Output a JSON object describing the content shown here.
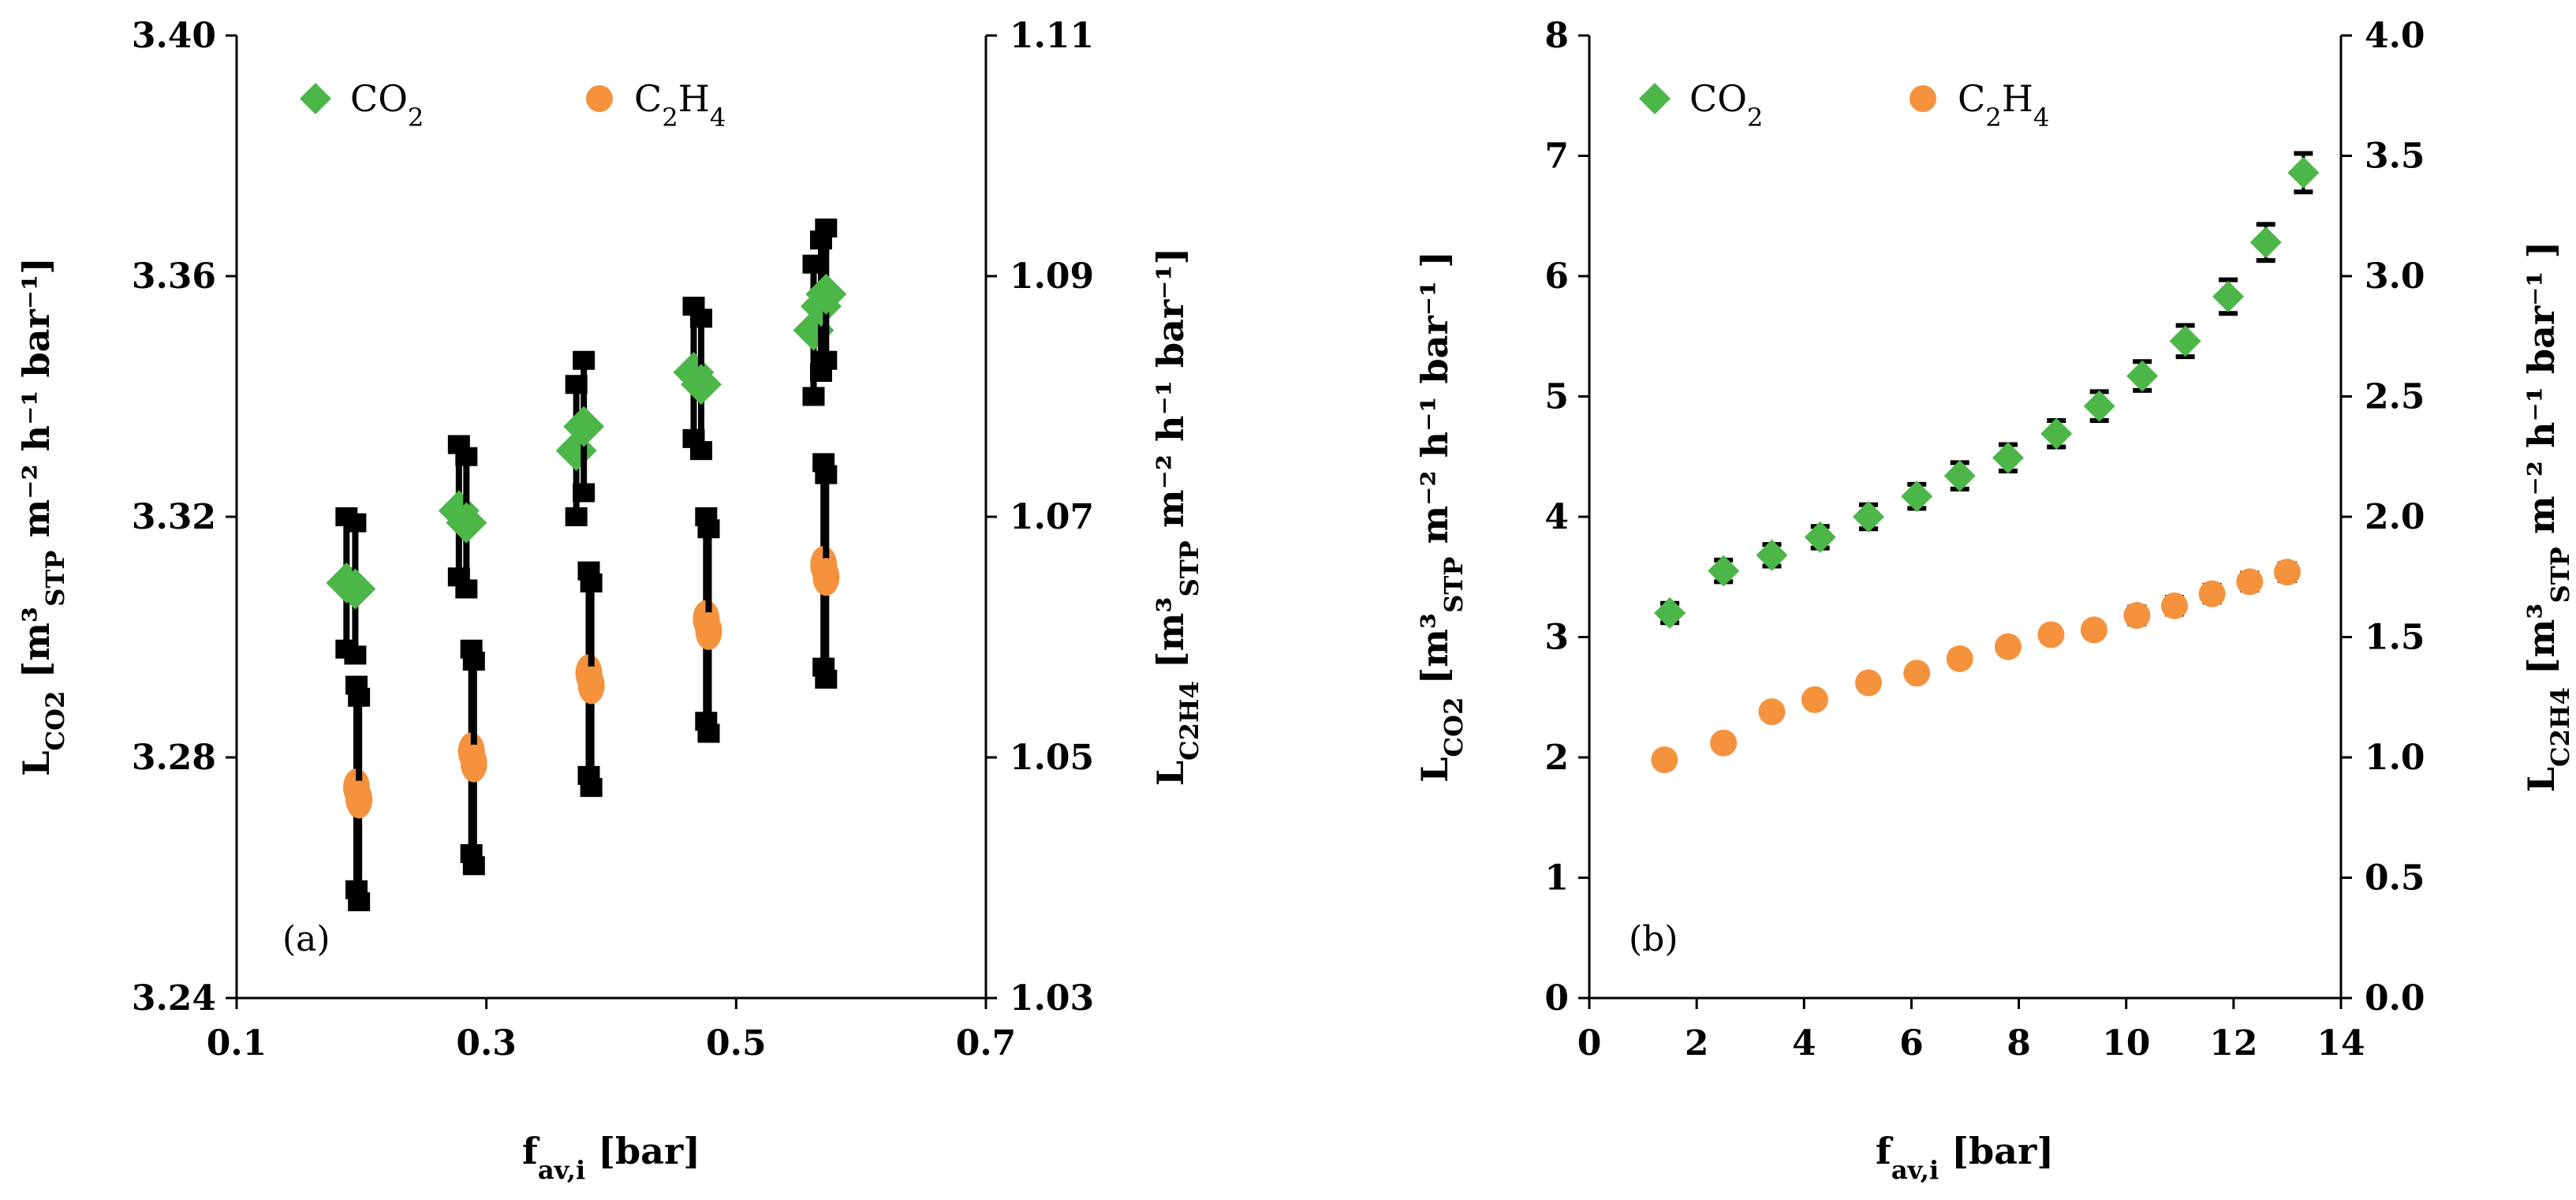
{
  "chart_data": [
    {
      "type": "scatter",
      "panel_label": "(a)",
      "xlabel": {
        "main": "f",
        "sub": "av,i",
        "unit": " [bar]"
      },
      "ylabel_left": {
        "main": "L",
        "sub": "CO2",
        "unit": " [m³",
        "sub2": "STP",
        "rest": " m⁻² h⁻¹ bar⁻¹]"
      },
      "ylabel_right": {
        "main": "L",
        "sub": "C2H4",
        "unit": " [m³",
        "sub2": "STP",
        "rest": " m⁻² h⁻¹ bar⁻¹]"
      },
      "xlim": [
        0.1,
        0.7
      ],
      "xticks": [
        "0.1",
        "0.3",
        "0.5",
        "0.7"
      ],
      "ylim_left": [
        3.24,
        3.4
      ],
      "yticks_left": [
        "3.24",
        "3.28",
        "3.32",
        "3.36",
        "3.40"
      ],
      "ylim_right": [
        1.03,
        1.11
      ],
      "yticks_right": [
        "1.03",
        "1.05",
        "1.07",
        "1.09",
        "1.11"
      ],
      "legend": [
        {
          "label": "CO",
          "sub": "2",
          "marker": "diamond",
          "color": "#4cb648"
        },
        {
          "label": "C",
          "sub": "2",
          "label2": "H",
          "sub2": "4",
          "marker": "circle",
          "color": "#f5923e"
        }
      ],
      "series": [
        {
          "name": "CO2",
          "axis": "left",
          "marker": "diamond",
          "color": "#4cb648",
          "points": [
            {
              "x": 0.188,
              "y": 3.309,
              "err": 0.011
            },
            {
              "x": 0.195,
              "y": 3.308,
              "err": 0.011
            },
            {
              "x": 0.278,
              "y": 3.321,
              "err": 0.011
            },
            {
              "x": 0.284,
              "y": 3.319,
              "err": 0.011
            },
            {
              "x": 0.372,
              "y": 3.331,
              "err": 0.011
            },
            {
              "x": 0.378,
              "y": 3.335,
              "err": 0.011
            },
            {
              "x": 0.466,
              "y": 3.344,
              "err": 0.011
            },
            {
              "x": 0.472,
              "y": 3.342,
              "err": 0.011
            },
            {
              "x": 0.562,
              "y": 3.351,
              "err": 0.011
            },
            {
              "x": 0.568,
              "y": 3.355,
              "err": 0.011
            },
            {
              "x": 0.572,
              "y": 3.357,
              "err": 0.011
            }
          ]
        },
        {
          "name": "C2H4",
          "axis": "right",
          "marker": "circle",
          "color": "#f5923e",
          "points": [
            {
              "x": 0.196,
              "y": 1.0475,
              "err": 0.0085
            },
            {
              "x": 0.198,
              "y": 1.0465,
              "err": 0.0085
            },
            {
              "x": 0.288,
              "y": 1.0505,
              "err": 0.0085
            },
            {
              "x": 0.29,
              "y": 1.0495,
              "err": 0.0085
            },
            {
              "x": 0.382,
              "y": 1.057,
              "err": 0.0085
            },
            {
              "x": 0.384,
              "y": 1.056,
              "err": 0.0085
            },
            {
              "x": 0.476,
              "y": 1.0615,
              "err": 0.0085
            },
            {
              "x": 0.478,
              "y": 1.0605,
              "err": 0.0085
            },
            {
              "x": 0.57,
              "y": 1.066,
              "err": 0.0085
            },
            {
              "x": 0.572,
              "y": 1.065,
              "err": 0.0085
            }
          ]
        }
      ]
    },
    {
      "type": "scatter",
      "panel_label": "(b)",
      "xlabel": {
        "main": "f",
        "sub": "av,i",
        "unit": " [bar]"
      },
      "ylabel_left": {
        "main": "L",
        "sub": "CO2",
        "unit": " [m³",
        "sub2": "STP",
        "rest": " m⁻² h⁻¹ bar⁻¹ ]"
      },
      "ylabel_right": {
        "main": "L",
        "sub": "C2H4",
        "unit": " [m³",
        "sub2": "STP",
        "rest": " m⁻² h⁻¹ bar⁻¹ ]"
      },
      "xlim": [
        0,
        14
      ],
      "xticks": [
        "0",
        "2",
        "4",
        "6",
        "8",
        "10",
        "12",
        "14"
      ],
      "ylim_left": [
        0,
        8
      ],
      "yticks_left": [
        "0",
        "1",
        "2",
        "3",
        "4",
        "5",
        "6",
        "7",
        "8"
      ],
      "ylim_right": [
        0,
        4
      ],
      "yticks_right": [
        "0.0",
        "0.5",
        "1.0",
        "1.5",
        "2.0",
        "2.5",
        "3.0",
        "3.5",
        "4.0"
      ],
      "legend": [
        {
          "label": "CO",
          "sub": "2",
          "marker": "diamond",
          "color": "#4cb648"
        },
        {
          "label": "C",
          "sub": "2",
          "label2": "H",
          "sub2": "4",
          "marker": "circle",
          "color": "#f5923e"
        }
      ],
      "series": [
        {
          "name": "CO2",
          "axis": "left",
          "marker": "diamond",
          "color": "#4cb648",
          "points": [
            {
              "x": 1.5,
              "y": 3.2,
              "err": 0.08
            },
            {
              "x": 2.5,
              "y": 3.55,
              "err": 0.09
            },
            {
              "x": 3.4,
              "y": 3.68,
              "err": 0.09
            },
            {
              "x": 4.3,
              "y": 3.83,
              "err": 0.09
            },
            {
              "x": 5.2,
              "y": 4.0,
              "err": 0.1
            },
            {
              "x": 6.1,
              "y": 4.17,
              "err": 0.1
            },
            {
              "x": 6.9,
              "y": 4.34,
              "err": 0.11
            },
            {
              "x": 7.8,
              "y": 4.49,
              "err": 0.11
            },
            {
              "x": 8.7,
              "y": 4.69,
              "err": 0.11
            },
            {
              "x": 9.5,
              "y": 4.92,
              "err": 0.12
            },
            {
              "x": 10.3,
              "y": 5.17,
              "err": 0.12
            },
            {
              "x": 11.1,
              "y": 5.46,
              "err": 0.13
            },
            {
              "x": 11.9,
              "y": 5.83,
              "err": 0.14
            },
            {
              "x": 12.6,
              "y": 6.28,
              "err": 0.15
            },
            {
              "x": 13.3,
              "y": 6.86,
              "err": 0.16
            }
          ]
        },
        {
          "name": "C2H4",
          "axis": "right",
          "marker": "circle",
          "color": "#f5923e",
          "points": [
            {
              "x": 1.4,
              "y": 0.99,
              "err": 0.025
            },
            {
              "x": 2.5,
              "y": 1.06,
              "err": 0.03
            },
            {
              "x": 3.4,
              "y": 1.19,
              "err": 0.03
            },
            {
              "x": 4.2,
              "y": 1.24,
              "err": 0.03
            },
            {
              "x": 5.2,
              "y": 1.31,
              "err": 0.03
            },
            {
              "x": 6.1,
              "y": 1.35,
              "err": 0.03
            },
            {
              "x": 6.9,
              "y": 1.41,
              "err": 0.03
            },
            {
              "x": 7.8,
              "y": 1.46,
              "err": 0.03
            },
            {
              "x": 8.6,
              "y": 1.51,
              "err": 0.03
            },
            {
              "x": 9.4,
              "y": 1.53,
              "err": 0.03
            },
            {
              "x": 10.2,
              "y": 1.59,
              "err": 0.035
            },
            {
              "x": 10.9,
              "y": 1.63,
              "err": 0.035
            },
            {
              "x": 11.6,
              "y": 1.68,
              "err": 0.035
            },
            {
              "x": 12.3,
              "y": 1.73,
              "err": 0.035
            },
            {
              "x": 13.0,
              "y": 1.77,
              "err": 0.035
            }
          ]
        }
      ]
    }
  ]
}
